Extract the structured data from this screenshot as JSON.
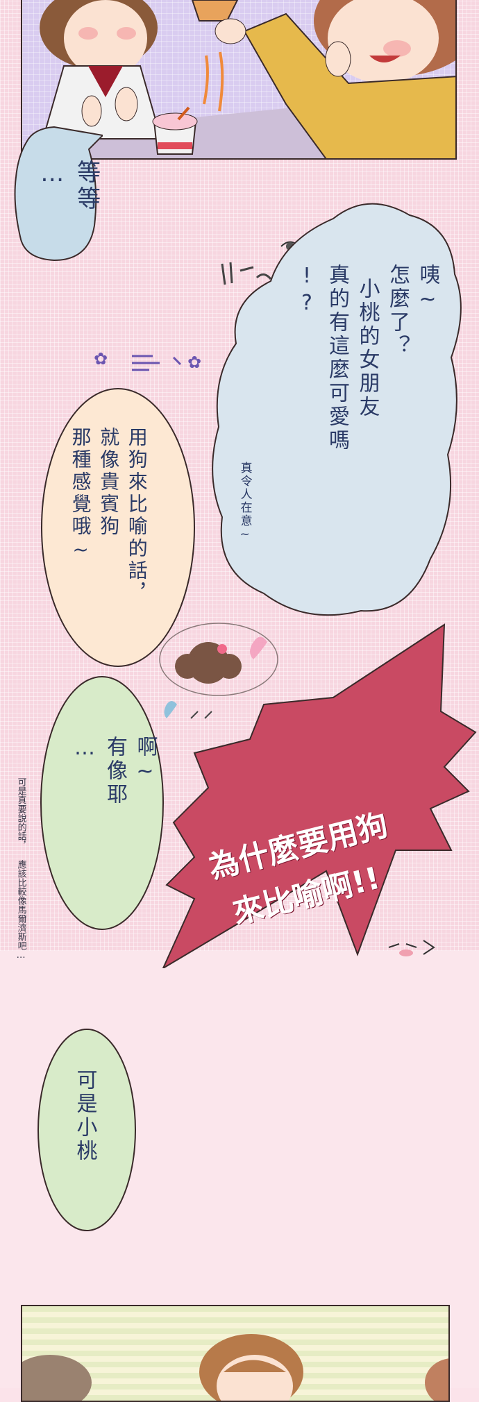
{
  "panels": {
    "top": {
      "description": "manga panel: two girls, one offering ice cream"
    },
    "bottom": {
      "description": "manga panel: girls on striped background"
    }
  },
  "bubbles": {
    "wait": {
      "lines": [
        "等等",
        "…"
      ]
    },
    "question": {
      "lines": [
        "咦~",
        "怎麼了？",
        "小桃的女朋友",
        "真的有這麼可愛嗎",
        "!?"
      ],
      "aside": "真令人在意~"
    },
    "dog_compare": {
      "lines": [
        "用狗來比喻的話，",
        "就像貴賓狗",
        "那種感覺哦~"
      ]
    },
    "agree": {
      "lines": [
        "啊~",
        "有像耶",
        "…"
      ]
    },
    "shout": {
      "lines": [
        "為什麼要用狗",
        "來比喻啊!!"
      ]
    },
    "aside_note": {
      "lines": [
        "可是真要說的話，",
        "應該比較像馬爾濟斯吧…"
      ]
    },
    "but": {
      "lines": [
        "可是小桃"
      ]
    }
  },
  "colors": {
    "page_pink": "#f7d6e0",
    "bubble_blue": "#dbe6ee",
    "bubble_peach": "#fde8d3",
    "bubble_green": "#d8ebc9",
    "shout_red": "#c94a63",
    "text_navy": "#2a3a66"
  }
}
